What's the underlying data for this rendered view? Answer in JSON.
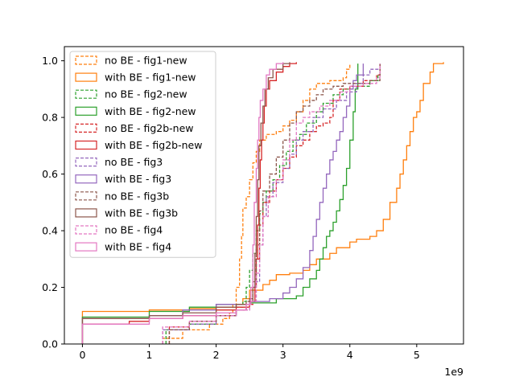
{
  "chart_data": {
    "type": "line",
    "title": "",
    "xlabel": "",
    "ylabel": "",
    "x_offset_label": "1e9",
    "xlim": [
      -0.27,
      5.7
    ],
    "ylim": [
      0.0,
      1.05
    ],
    "x_ticks": [
      0,
      1,
      2,
      3,
      4,
      5
    ],
    "x_tick_labels": [
      "0",
      "1",
      "2",
      "3",
      "4",
      "5"
    ],
    "y_ticks": [
      0.0,
      0.2,
      0.4,
      0.6,
      0.8,
      1.0
    ],
    "y_tick_labels": [
      "0.0",
      "0.2",
      "0.4",
      "0.6",
      "0.8",
      "1.0"
    ],
    "grid": false,
    "legend_position": "upper-left",
    "series": [
      {
        "name": "no BE - fig1-new",
        "color": "#ff7f0e",
        "dashed": true,
        "points": [
          [
            1.2,
            0.0
          ],
          [
            1.2,
            0.02
          ],
          [
            1.5,
            0.05
          ],
          [
            1.9,
            0.07
          ],
          [
            2.1,
            0.09
          ],
          [
            2.2,
            0.11
          ],
          [
            2.25,
            0.14
          ],
          [
            2.3,
            0.2
          ],
          [
            2.35,
            0.3
          ],
          [
            2.38,
            0.38
          ],
          [
            2.4,
            0.48
          ],
          [
            2.45,
            0.52
          ],
          [
            2.5,
            0.58
          ],
          [
            2.55,
            0.64
          ],
          [
            2.6,
            0.68
          ],
          [
            2.65,
            0.72
          ],
          [
            2.75,
            0.74
          ],
          [
            2.9,
            0.75
          ],
          [
            3.0,
            0.77
          ],
          [
            3.1,
            0.79
          ],
          [
            3.2,
            0.82
          ],
          [
            3.3,
            0.86
          ],
          [
            3.4,
            0.9
          ],
          [
            3.5,
            0.92
          ],
          [
            3.7,
            0.93
          ],
          [
            3.9,
            0.94
          ],
          [
            3.95,
            0.97
          ],
          [
            4.0,
            0.99
          ]
        ]
      },
      {
        "name": "with BE - fig1-new",
        "color": "#ff7f0e",
        "dashed": false,
        "points": [
          [
            0.0,
            0.0
          ],
          [
            0.0,
            0.115
          ],
          [
            1.0,
            0.12
          ],
          [
            1.6,
            0.125
          ],
          [
            2.0,
            0.13
          ],
          [
            2.3,
            0.14
          ],
          [
            2.4,
            0.16
          ],
          [
            2.5,
            0.19
          ],
          [
            2.7,
            0.21
          ],
          [
            2.8,
            0.225
          ],
          [
            2.9,
            0.245
          ],
          [
            3.1,
            0.25
          ],
          [
            3.3,
            0.26
          ],
          [
            3.4,
            0.28
          ],
          [
            3.5,
            0.3
          ],
          [
            3.7,
            0.32
          ],
          [
            3.8,
            0.34
          ],
          [
            4.0,
            0.36
          ],
          [
            4.1,
            0.37
          ],
          [
            4.3,
            0.38
          ],
          [
            4.4,
            0.4
          ],
          [
            4.5,
            0.44
          ],
          [
            4.6,
            0.5
          ],
          [
            4.7,
            0.55
          ],
          [
            4.75,
            0.6
          ],
          [
            4.8,
            0.65
          ],
          [
            4.85,
            0.7
          ],
          [
            4.9,
            0.75
          ],
          [
            4.95,
            0.8
          ],
          [
            5.0,
            0.82
          ],
          [
            5.05,
            0.86
          ],
          [
            5.1,
            0.92
          ],
          [
            5.2,
            0.96
          ],
          [
            5.25,
            0.99
          ],
          [
            5.4,
            0.995
          ]
        ]
      },
      {
        "name": "no BE - fig2-new",
        "color": "#2ca02c",
        "dashed": true,
        "points": [
          [
            1.25,
            0.0
          ],
          [
            1.25,
            0.05
          ],
          [
            1.6,
            0.07
          ],
          [
            2.0,
            0.1
          ],
          [
            2.3,
            0.13
          ],
          [
            2.4,
            0.15
          ],
          [
            2.45,
            0.2
          ],
          [
            2.5,
            0.26
          ],
          [
            2.55,
            0.32
          ],
          [
            2.6,
            0.4
          ],
          [
            2.65,
            0.46
          ],
          [
            2.7,
            0.5
          ],
          [
            2.75,
            0.54
          ],
          [
            2.85,
            0.58
          ],
          [
            2.95,
            0.63
          ],
          [
            3.05,
            0.68
          ],
          [
            3.15,
            0.72
          ],
          [
            3.25,
            0.74
          ],
          [
            3.35,
            0.78
          ],
          [
            3.5,
            0.82
          ],
          [
            3.6,
            0.85
          ],
          [
            3.75,
            0.88
          ],
          [
            3.9,
            0.9
          ],
          [
            4.1,
            0.91
          ],
          [
            4.3,
            0.93
          ],
          [
            4.42,
            0.95
          ],
          [
            4.45,
            0.99
          ]
        ]
      },
      {
        "name": "with BE - fig2-new",
        "color": "#2ca02c",
        "dashed": false,
        "points": [
          [
            0.0,
            0.0
          ],
          [
            0.0,
            0.095
          ],
          [
            1.0,
            0.115
          ],
          [
            1.6,
            0.13
          ],
          [
            2.0,
            0.14
          ],
          [
            2.5,
            0.145
          ],
          [
            2.9,
            0.16
          ],
          [
            3.2,
            0.17
          ],
          [
            3.3,
            0.2
          ],
          [
            3.4,
            0.23
          ],
          [
            3.5,
            0.26
          ],
          [
            3.55,
            0.3
          ],
          [
            3.6,
            0.34
          ],
          [
            3.65,
            0.38
          ],
          [
            3.7,
            0.4
          ],
          [
            3.75,
            0.43
          ],
          [
            3.8,
            0.47
          ],
          [
            3.85,
            0.51
          ],
          [
            3.9,
            0.56
          ],
          [
            3.95,
            0.62
          ],
          [
            4.0,
            0.72
          ],
          [
            4.05,
            0.82
          ],
          [
            4.08,
            0.9
          ],
          [
            4.12,
            0.99
          ]
        ]
      },
      {
        "name": "no BE - fig2b-new",
        "color": "#d62728",
        "dashed": true,
        "points": [
          [
            1.3,
            0.0
          ],
          [
            1.3,
            0.06
          ],
          [
            1.6,
            0.08
          ],
          [
            2.0,
            0.1
          ],
          [
            2.3,
            0.12
          ],
          [
            2.45,
            0.14
          ],
          [
            2.55,
            0.2
          ],
          [
            2.6,
            0.3
          ],
          [
            2.65,
            0.42
          ],
          [
            2.7,
            0.5
          ],
          [
            2.8,
            0.54
          ],
          [
            2.9,
            0.58
          ],
          [
            3.0,
            0.62
          ],
          [
            3.1,
            0.66
          ],
          [
            3.2,
            0.7
          ],
          [
            3.3,
            0.72
          ],
          [
            3.4,
            0.75
          ],
          [
            3.5,
            0.77
          ],
          [
            3.6,
            0.78
          ],
          [
            3.7,
            0.8
          ],
          [
            3.75,
            0.86
          ],
          [
            3.85,
            0.9
          ],
          [
            4.0,
            0.91
          ],
          [
            4.2,
            0.93
          ],
          [
            4.4,
            0.95
          ],
          [
            4.45,
            0.99
          ]
        ]
      },
      {
        "name": "with BE - fig2b-new",
        "color": "#d62728",
        "dashed": false,
        "points": [
          [
            0.0,
            0.0
          ],
          [
            0.0,
            0.07
          ],
          [
            0.7,
            0.08
          ],
          [
            1.0,
            0.09
          ],
          [
            1.5,
            0.1
          ],
          [
            2.0,
            0.12
          ],
          [
            2.3,
            0.13
          ],
          [
            2.5,
            0.15
          ],
          [
            2.58,
            0.2
          ],
          [
            2.6,
            0.3
          ],
          [
            2.62,
            0.42
          ],
          [
            2.64,
            0.55
          ],
          [
            2.66,
            0.65
          ],
          [
            2.68,
            0.72
          ],
          [
            2.7,
            0.78
          ],
          [
            2.72,
            0.84
          ],
          [
            2.75,
            0.9
          ],
          [
            2.8,
            0.93
          ],
          [
            2.9,
            0.96
          ],
          [
            3.0,
            0.98
          ],
          [
            3.1,
            0.99
          ],
          [
            3.2,
            0.995
          ]
        ]
      },
      {
        "name": "no BE - fig3",
        "color": "#9467bd",
        "dashed": true,
        "points": [
          [
            1.2,
            0.0
          ],
          [
            1.2,
            0.05
          ],
          [
            1.6,
            0.07
          ],
          [
            2.0,
            0.1
          ],
          [
            2.3,
            0.12
          ],
          [
            2.5,
            0.15
          ],
          [
            2.6,
            0.22
          ],
          [
            2.65,
            0.35
          ],
          [
            2.7,
            0.45
          ],
          [
            2.75,
            0.52
          ],
          [
            2.85,
            0.57
          ],
          [
            3.0,
            0.62
          ],
          [
            3.1,
            0.67
          ],
          [
            3.2,
            0.72
          ],
          [
            3.3,
            0.75
          ],
          [
            3.45,
            0.8
          ],
          [
            3.6,
            0.83
          ],
          [
            3.8,
            0.86
          ],
          [
            3.95,
            0.89
          ],
          [
            4.1,
            0.92
          ],
          [
            4.2,
            0.95
          ],
          [
            4.3,
            0.97
          ],
          [
            4.45,
            0.99
          ]
        ]
      },
      {
        "name": "with BE - fig3",
        "color": "#9467bd",
        "dashed": false,
        "points": [
          [
            0.0,
            0.0
          ],
          [
            0.0,
            0.09
          ],
          [
            1.0,
            0.1
          ],
          [
            1.5,
            0.12
          ],
          [
            2.0,
            0.14
          ],
          [
            2.5,
            0.15
          ],
          [
            2.8,
            0.16
          ],
          [
            3.0,
            0.18
          ],
          [
            3.1,
            0.2
          ],
          [
            3.2,
            0.23
          ],
          [
            3.3,
            0.27
          ],
          [
            3.4,
            0.33
          ],
          [
            3.45,
            0.38
          ],
          [
            3.5,
            0.44
          ],
          [
            3.55,
            0.5
          ],
          [
            3.6,
            0.55
          ],
          [
            3.65,
            0.6
          ],
          [
            3.7,
            0.65
          ],
          [
            3.75,
            0.68
          ],
          [
            3.8,
            0.72
          ],
          [
            3.85,
            0.75
          ],
          [
            3.9,
            0.8
          ],
          [
            3.95,
            0.84
          ],
          [
            4.0,
            0.9
          ],
          [
            4.05,
            0.93
          ],
          [
            4.1,
            0.95
          ],
          [
            4.2,
            0.99
          ]
        ]
      },
      {
        "name": "no BE - fig3b",
        "color": "#8c564b",
        "dashed": true,
        "points": [
          [
            1.3,
            0.0
          ],
          [
            1.3,
            0.05
          ],
          [
            1.6,
            0.08
          ],
          [
            2.0,
            0.1
          ],
          [
            2.3,
            0.12
          ],
          [
            2.45,
            0.15
          ],
          [
            2.55,
            0.22
          ],
          [
            2.6,
            0.35
          ],
          [
            2.65,
            0.47
          ],
          [
            2.7,
            0.54
          ],
          [
            2.8,
            0.6
          ],
          [
            2.9,
            0.66
          ],
          [
            3.0,
            0.72
          ],
          [
            3.1,
            0.78
          ],
          [
            3.2,
            0.82
          ],
          [
            3.3,
            0.84
          ],
          [
            3.4,
            0.86
          ],
          [
            3.5,
            0.88
          ],
          [
            3.6,
            0.9
          ],
          [
            3.75,
            0.91
          ],
          [
            3.9,
            0.92
          ],
          [
            4.1,
            0.92
          ],
          [
            4.3,
            0.93
          ],
          [
            4.45,
            0.99
          ]
        ]
      },
      {
        "name": "with BE - fig3b",
        "color": "#8c564b",
        "dashed": false,
        "points": [
          [
            0.0,
            0.0
          ],
          [
            0.0,
            0.09
          ],
          [
            1.0,
            0.1
          ],
          [
            1.5,
            0.11
          ],
          [
            2.0,
            0.13
          ],
          [
            2.3,
            0.14
          ],
          [
            2.5,
            0.16
          ],
          [
            2.55,
            0.2
          ],
          [
            2.58,
            0.32
          ],
          [
            2.6,
            0.45
          ],
          [
            2.62,
            0.58
          ],
          [
            2.64,
            0.7
          ],
          [
            2.67,
            0.78
          ],
          [
            2.7,
            0.84
          ],
          [
            2.73,
            0.9
          ],
          [
            2.78,
            0.94
          ],
          [
            2.85,
            0.97
          ],
          [
            3.0,
            0.99
          ],
          [
            3.1,
            0.995
          ]
        ]
      },
      {
        "name": "no BE - fig4",
        "color": "#e377c2",
        "dashed": true,
        "points": [
          [
            1.2,
            0.0
          ],
          [
            1.2,
            0.06
          ],
          [
            1.6,
            0.08
          ],
          [
            2.0,
            0.1
          ],
          [
            2.3,
            0.12
          ],
          [
            2.5,
            0.15
          ],
          [
            2.6,
            0.25
          ],
          [
            2.65,
            0.35
          ],
          [
            2.7,
            0.45
          ],
          [
            2.78,
            0.52
          ],
          [
            2.9,
            0.58
          ],
          [
            3.0,
            0.65
          ],
          [
            3.1,
            0.72
          ],
          [
            3.2,
            0.78
          ],
          [
            3.3,
            0.8
          ],
          [
            3.4,
            0.82
          ],
          [
            3.55,
            0.84
          ],
          [
            3.7,
            0.86
          ],
          [
            3.85,
            0.89
          ],
          [
            4.0,
            0.91
          ],
          [
            4.2,
            0.92
          ],
          [
            4.4,
            0.94
          ],
          [
            4.45,
            0.99
          ]
        ]
      },
      {
        "name": "with BE - fig4",
        "color": "#e377c2",
        "dashed": false,
        "points": [
          [
            0.0,
            0.0
          ],
          [
            0.0,
            0.07
          ],
          [
            1.0,
            0.09
          ],
          [
            1.5,
            0.1
          ],
          [
            2.0,
            0.11
          ],
          [
            2.3,
            0.12
          ],
          [
            2.45,
            0.14
          ],
          [
            2.52,
            0.2
          ],
          [
            2.55,
            0.35
          ],
          [
            2.57,
            0.5
          ],
          [
            2.6,
            0.62
          ],
          [
            2.62,
            0.72
          ],
          [
            2.64,
            0.8
          ],
          [
            2.66,
            0.86
          ],
          [
            2.7,
            0.9
          ],
          [
            2.75,
            0.95
          ],
          [
            2.8,
            0.97
          ],
          [
            2.9,
            0.99
          ],
          [
            3.0,
            0.995
          ]
        ]
      }
    ]
  }
}
